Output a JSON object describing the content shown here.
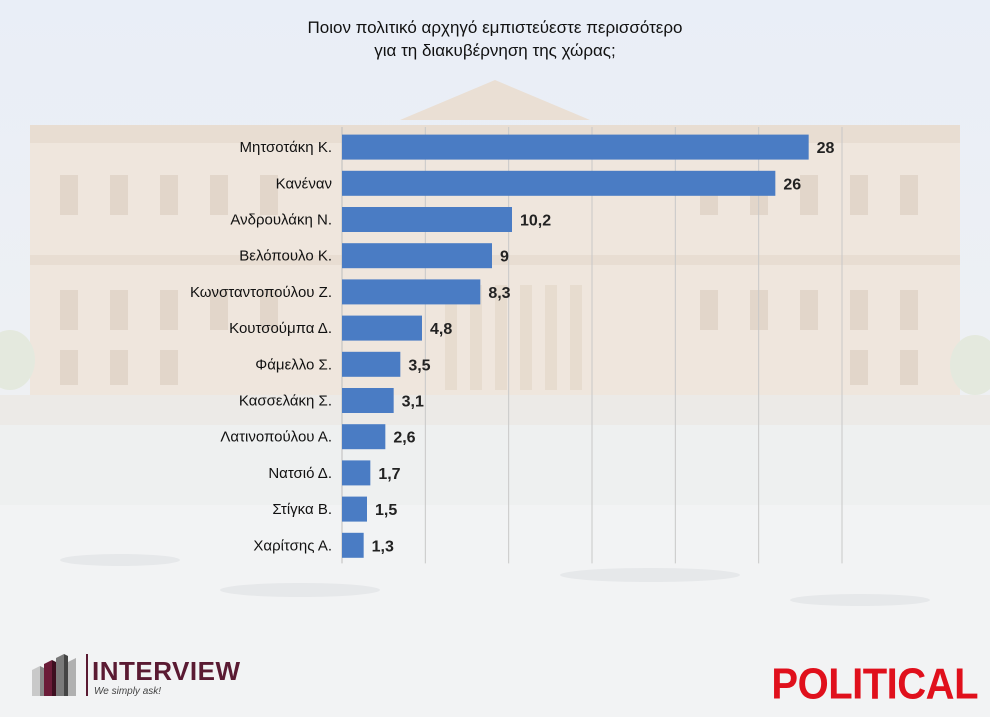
{
  "chart_data": {
    "type": "bar",
    "orientation": "horizontal",
    "title_lines": [
      "Ποιον πολιτικό αρχηγό εμπιστεύεστε περισσότερο",
      "για τη διακυβέρνηση της χώρας;"
    ],
    "categories": [
      "Μητσοτάκη Κ.",
      "Κανέναν",
      "Ανδρουλάκη Ν.",
      "Βελόπουλο Κ.",
      "Κωνσταντοπούλου Ζ.",
      "Κουτσούμπα Δ.",
      "Φάμελλο Σ.",
      "Κασσελάκη Σ.",
      "Λατινοπούλου Α.",
      "Νατσιό Δ.",
      "Στίγκα Β.",
      "Χαρίτσης Α."
    ],
    "values": [
      28,
      26,
      10.2,
      9,
      8.3,
      4.8,
      3.5,
      3.1,
      2.6,
      1.7,
      1.5,
      1.3
    ],
    "value_labels": [
      "28",
      "26",
      "10,2",
      "9",
      "8,3",
      "4,8",
      "3,5",
      "3,1",
      "2,6",
      "1,7",
      "1,5",
      "1,3"
    ],
    "xlim": [
      0,
      30
    ],
    "grid": true,
    "bar_color": "#4a7cc4"
  },
  "logos": {
    "interview_name": "INTERVIEW",
    "interview_tagline": "We simply ask!",
    "political": "POLITICAL"
  },
  "colors": {
    "interview_brand": "#5a1a32",
    "political_brand": "#e0101c"
  }
}
